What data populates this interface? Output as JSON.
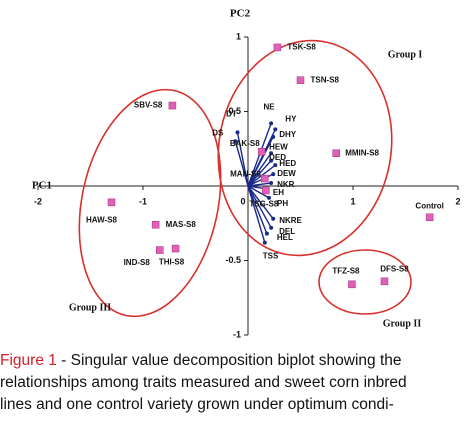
{
  "chart_data": {
    "type": "biplot",
    "xlabel": "PC1",
    "ylabel": "PC2",
    "xlim": [
      -2,
      2
    ],
    "ylim": [
      -1,
      1
    ],
    "xticks": [
      -2,
      -1,
      0,
      1,
      2
    ],
    "yticks": [
      -1,
      -0.5,
      0,
      0.5,
      1
    ],
    "points": {
      "color": "#e060b8",
      "labels": [
        "TSK-S8",
        "TSN-S8",
        "SBV-S8",
        "MMIN-S8",
        "Control",
        "HAW-S8",
        "MAS-S8",
        "IND-S8",
        "THI-S8",
        "TFZ-S8",
        "DFS-S8",
        "BAK-S8",
        "MAN-S8",
        "TSG-S8"
      ],
      "x": [
        0.28,
        0.5,
        -0.72,
        0.84,
        1.73,
        -1.3,
        -0.88,
        -0.84,
        -0.69,
        0.99,
        1.3,
        0.13,
        0.16,
        0.17
      ],
      "y": [
        0.93,
        0.71,
        0.54,
        0.22,
        -0.21,
        -0.11,
        -0.26,
        -0.43,
        -0.42,
        -0.66,
        -0.64,
        0.23,
        0.05,
        -0.03
      ]
    },
    "vectors": {
      "color": "#1a2a8c",
      "labels": [
        "DT",
        "DS",
        "NE",
        "HY",
        "DHY",
        "HEW",
        "DED",
        "HED",
        "DEW",
        "NKR",
        "EH",
        "PH",
        "NKRE",
        "DEL",
        "HEL",
        "TSS"
      ],
      "x": [
        -0.1,
        -0.12,
        0.22,
        0.26,
        0.24,
        0.22,
        0.22,
        0.26,
        0.24,
        0.22,
        0.18,
        0.2,
        0.24,
        0.22,
        0.18,
        0.16
      ],
      "y": [
        0.36,
        0.3,
        0.42,
        0.38,
        0.33,
        0.22,
        0.17,
        0.14,
        0.08,
        0.02,
        -0.02,
        -0.08,
        -0.22,
        -0.28,
        -0.32,
        -0.38
      ]
    },
    "groups": [
      {
        "label": "Group I"
      },
      {
        "label": "Group II"
      },
      {
        "label": "Group III"
      }
    ]
  },
  "caption": {
    "label": "Figure 1",
    "lines": [
      " - Singular value decomposition biplot showing the",
      "relationships among traits measured and sweet corn inbred",
      "lines and one control variety grown under optimum condi-"
    ]
  }
}
